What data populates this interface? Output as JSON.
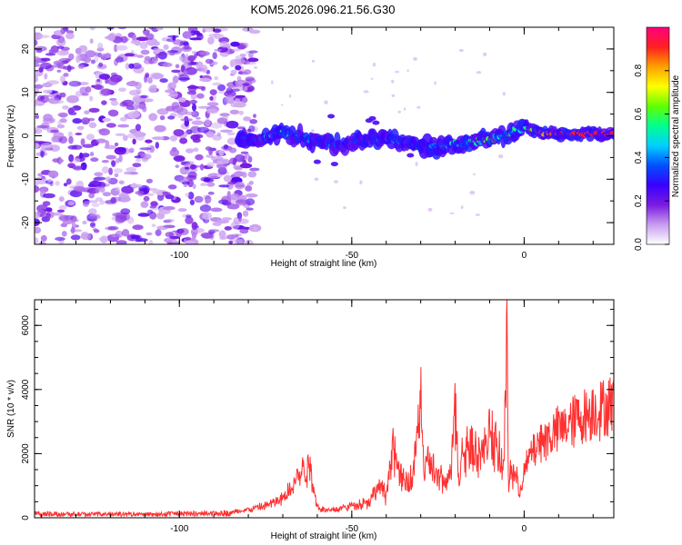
{
  "figure_title": "KOM5.2026.096.21.56.G30",
  "chart_data": [
    {
      "type": "heatmap",
      "title": "KOM5.2026.096.21.56.G30",
      "xlabel": "Height of straight line (km)",
      "ylabel": "Frequency (Hz)",
      "xlim": [
        -142,
        26
      ],
      "ylim": [
        -25,
        25
      ],
      "xticks": [
        -100,
        -50,
        0
      ],
      "yticks": [
        -20,
        -10,
        0,
        10,
        20
      ],
      "colorbar": {
        "label": "Normalized spectral amplitude",
        "range": [
          0,
          1
        ],
        "ticks": [
          0.0,
          0.2,
          0.4,
          0.6,
          0.8
        ],
        "colors": [
          "#ffffff",
          "#c89cf0",
          "#7a1be0",
          "#3a00ff",
          "#0050ff",
          "#00d0ff",
          "#00ff90",
          "#60ff00",
          "#ffff00",
          "#ffa000",
          "#ff2020",
          "#ff0080"
        ]
      },
      "ridge": {
        "x": [
          -83,
          -75,
          -70,
          -65,
          -60,
          -55,
          -50,
          -45,
          -40,
          -35,
          -30,
          -25,
          -20,
          -15,
          -10,
          -5,
          0,
          5,
          10,
          15,
          20,
          26
        ],
        "y": [
          -0.5,
          -0.5,
          0.5,
          0,
          -1.5,
          -2,
          -1.5,
          -1,
          -0.5,
          -1.5,
          -2.5,
          -2.5,
          -2,
          -1.5,
          -1,
          0.5,
          2,
          0.5,
          0.5,
          0.5,
          0.5,
          0.5
        ],
        "amplitude": [
          0.3,
          0.4,
          0.5,
          0.45,
          0.35,
          0.35,
          0.3,
          0.35,
          0.4,
          0.35,
          0.35,
          0.4,
          0.5,
          0.55,
          0.6,
          0.55,
          0.5,
          0.8,
          0.9,
          0.92,
          0.92,
          0.92
        ]
      },
      "noise_region_x": [
        -142,
        -82
      ]
    },
    {
      "type": "line",
      "xlabel": "Height of straight line (km)",
      "ylabel": "SNR (10 * v/v)",
      "xlim": [
        -142,
        26
      ],
      "ylim": [
        0,
        6800
      ],
      "xticks": [
        -100,
        -50,
        0
      ],
      "yticks": [
        0,
        2000,
        4000,
        6000
      ],
      "color": "#ff3030",
      "series": [
        {
          "name": "SNR",
          "x": [
            -142,
            -130,
            -120,
            -110,
            -100,
            -90,
            -85,
            -80,
            -75,
            -70,
            -68,
            -66,
            -64,
            -62,
            -60,
            -58,
            -55,
            -50,
            -45,
            -42,
            -40,
            -38,
            -36,
            -34,
            -32,
            -30,
            -29,
            -28,
            -27,
            -25,
            -22,
            -20,
            -19,
            -18,
            -15,
            -12,
            -10,
            -8,
            -6,
            -5,
            -4.5,
            -4,
            -3,
            -2,
            -1,
            0,
            2,
            5,
            10,
            15,
            20,
            26
          ],
          "y": [
            150,
            130,
            120,
            120,
            150,
            160,
            200,
            300,
            450,
            700,
            1100,
            1500,
            1800,
            1900,
            400,
            300,
            300,
            450,
            600,
            1200,
            800,
            2800,
            1500,
            1200,
            1800,
            4700,
            1300,
            2200,
            1900,
            1500,
            1200,
            4200,
            1400,
            2500,
            2800,
            2200,
            3400,
            2500,
            1800,
            6800,
            800,
            1800,
            1600,
            1300,
            1000,
            1700,
            2400,
            2900,
            3300,
            3700,
            4000,
            4300
          ]
        }
      ]
    }
  ]
}
